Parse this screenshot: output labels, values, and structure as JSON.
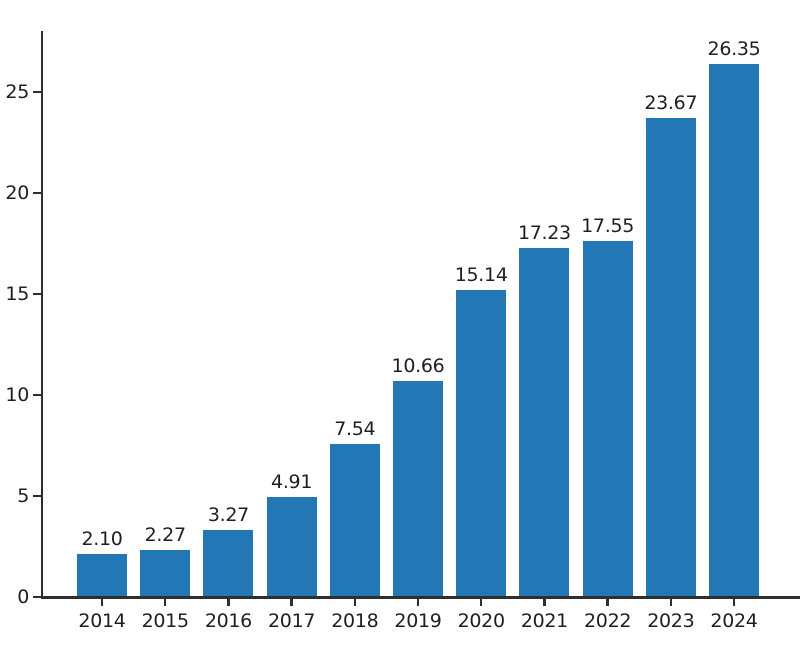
{
  "chart_data": {
    "type": "bar",
    "title": "",
    "xlabel": "",
    "ylabel": "",
    "categories": [
      "2014",
      "2015",
      "2016",
      "2017",
      "2018",
      "2019",
      "2020",
      "2021",
      "2022",
      "2023",
      "2024"
    ],
    "values": [
      2.1,
      2.27,
      3.27,
      4.91,
      7.54,
      10.66,
      15.14,
      17.23,
      17.55,
      23.67,
      26.35
    ],
    "bar_labels": [
      "2.10",
      "2.27",
      "3.27",
      "4.91",
      "7.54",
      "10.66",
      "15.14",
      "17.23",
      "17.55",
      "23.67",
      "26.35"
    ],
    "ytick_labels": [
      "0",
      "5",
      "10",
      "15",
      "20",
      "25"
    ],
    "yticks": [
      0,
      5,
      10,
      15,
      20,
      25
    ],
    "ylim": [
      0,
      28
    ],
    "grid": false,
    "legend": null,
    "colors": {
      "bar": "#2277b4",
      "text": "#1f1f1f",
      "axis": "#2e2e2e",
      "background": "#ffffff"
    }
  }
}
